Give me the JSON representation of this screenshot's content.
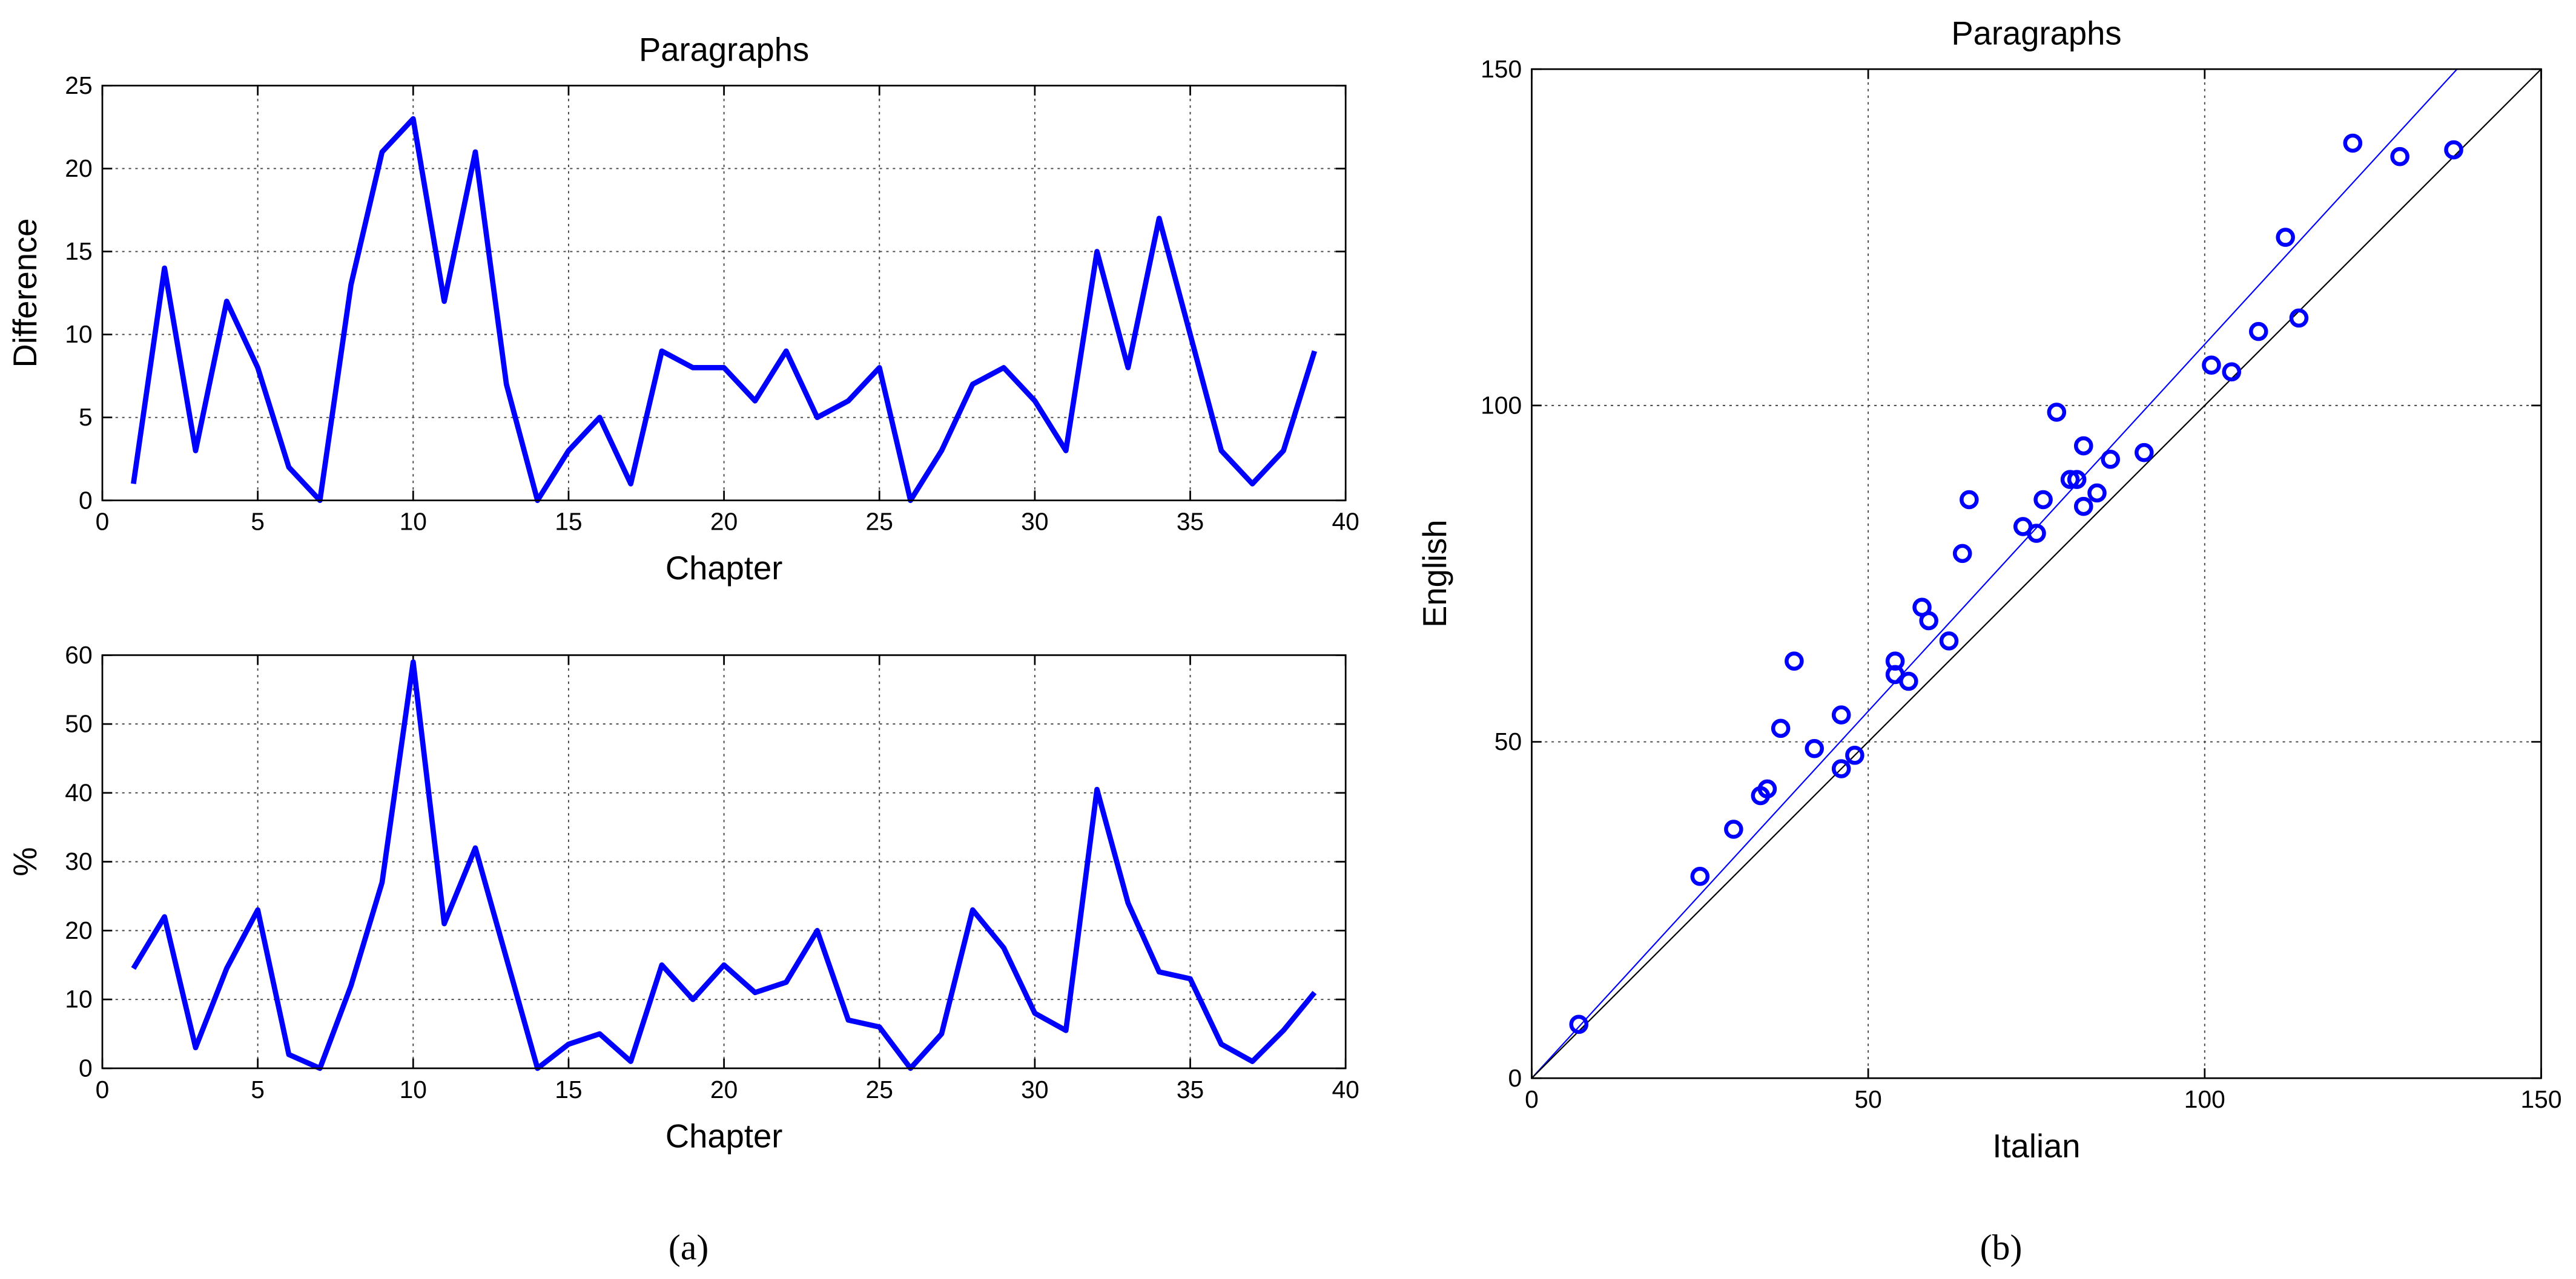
{
  "chart_data": [
    {
      "type": "line",
      "title": "Paragraphs",
      "xlabel": "Chapter",
      "ylabel": "Difference",
      "x": [
        1,
        2,
        3,
        4,
        5,
        6,
        7,
        8,
        9,
        10,
        11,
        12,
        13,
        14,
        15,
        16,
        17,
        18,
        19,
        20,
        21,
        22,
        23,
        24,
        25,
        26,
        27,
        28,
        29,
        30,
        31,
        32,
        33,
        34,
        35,
        36,
        37,
        38,
        39
      ],
      "series": [
        {
          "color": "#0000ff",
          "values": [
            1,
            14,
            3,
            12,
            8,
            2,
            0,
            13,
            21,
            23,
            12,
            21,
            7,
            0,
            3,
            5,
            1,
            9,
            8,
            8,
            6,
            9,
            5,
            6,
            8,
            0,
            3,
            7,
            8,
            6,
            3,
            15,
            8,
            17,
            10,
            3,
            1,
            3,
            9
          ]
        }
      ],
      "xlim": [
        0,
        40
      ],
      "xticks": [
        0,
        5,
        10,
        15,
        20,
        25,
        30,
        35,
        40
      ],
      "ylim": [
        0,
        25
      ],
      "yticks": [
        0,
        5,
        10,
        15,
        20,
        25
      ],
      "grid": true
    },
    {
      "type": "line",
      "xlabel": "Chapter",
      "ylabel": "%",
      "x": [
        1,
        2,
        3,
        4,
        5,
        6,
        7,
        8,
        9,
        10,
        11,
        12,
        13,
        14,
        15,
        16,
        17,
        18,
        19,
        20,
        21,
        22,
        23,
        24,
        25,
        26,
        27,
        28,
        29,
        30,
        31,
        32,
        33,
        34,
        35,
        36,
        37,
        38,
        39
      ],
      "series": [
        {
          "color": "#0000ff",
          "values": [
            14.5,
            22,
            3,
            14.5,
            23,
            2,
            0,
            12,
            27,
            59,
            21,
            32,
            16,
            0,
            3.5,
            5,
            1,
            15,
            10,
            15,
            11,
            12.5,
            20,
            7,
            6,
            0,
            5,
            23,
            17.5,
            8,
            5.5,
            40.5,
            24,
            14,
            13,
            3.5,
            1,
            5.5,
            11
          ]
        }
      ],
      "xlim": [
        0,
        40
      ],
      "xticks": [
        0,
        5,
        10,
        15,
        20,
        25,
        30,
        35,
        40
      ],
      "ylim": [
        0,
        60
      ],
      "yticks": [
        0,
        10,
        20,
        30,
        40,
        50,
        60
      ],
      "grid": true
    },
    {
      "type": "scatter",
      "title": "Paragraphs",
      "xlabel": "Italian",
      "ylabel": "English",
      "series": [
        {
          "color": "#0000ff",
          "x": [
            7,
            25,
            30,
            34,
            35,
            37,
            39,
            42,
            46,
            46,
            48,
            54,
            54,
            56,
            58,
            59,
            62,
            64,
            65,
            73,
            75,
            76,
            78,
            80,
            81,
            82,
            82,
            84,
            86,
            91,
            101,
            104,
            108,
            112,
            114,
            122,
            129,
            137
          ],
          "y": [
            8,
            30,
            37,
            42,
            43,
            52,
            62,
            49,
            54,
            46,
            48,
            62,
            60,
            59,
            70,
            68,
            65,
            78,
            86,
            82,
            81,
            86,
            99,
            89,
            89,
            94,
            85,
            87,
            92,
            93,
            106,
            105,
            111,
            125,
            113,
            139,
            137,
            138
          ]
        }
      ],
      "lines": [
        {
          "color": "#0000ff",
          "x": [
            0,
            137.5
          ],
          "y": [
            0,
            150
          ]
        },
        {
          "color": "#000000",
          "x": [
            0,
            150
          ],
          "y": [
            0,
            150
          ]
        }
      ],
      "xlim": [
        0,
        150
      ],
      "xticks": [
        0,
        50,
        100,
        150
      ],
      "ylim": [
        0,
        150
      ],
      "yticks": [
        0,
        50,
        100,
        150
      ],
      "grid": true
    }
  ],
  "captions": [
    "(a)",
    "(b)"
  ]
}
